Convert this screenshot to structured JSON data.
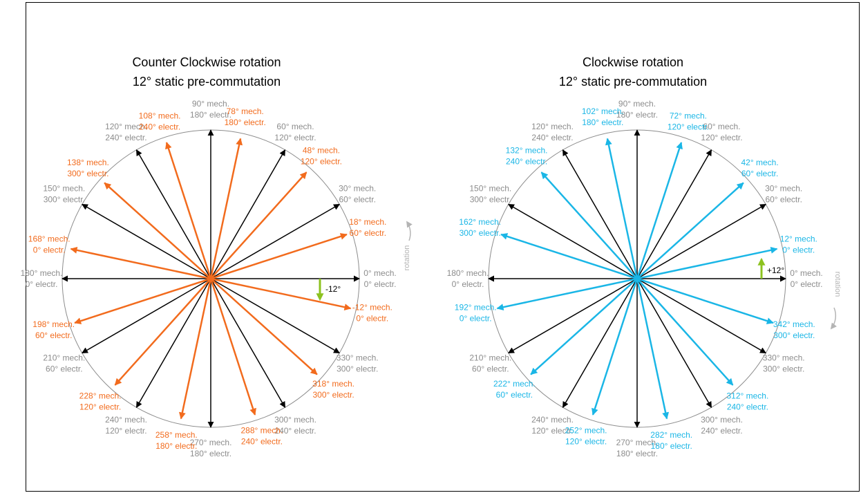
{
  "caption": "",
  "colors": {
    "circle": "#8c8c8c",
    "static_arrow": "#000000",
    "ccw_arrow": "#f26b1d",
    "cw_arrow": "#1ab6e6",
    "offset_marker": "#8cc21f",
    "static_label": "#8c8c8c",
    "rotation_label": "#b4b4b4"
  },
  "chart_data": [
    {
      "type": "polar-vector-diagram",
      "title_lines": [
        "Counter Clockwise rotation",
        "12° static pre-commutation"
      ],
      "rotation_label": "rotation",
      "rotation_direction": "counter-clockwise",
      "offset_label": "-12°",
      "static_vectors": [
        {
          "angle": 0,
          "lines": [
            "0° mech.",
            "0° electr."
          ]
        },
        {
          "angle": 30,
          "lines": [
            "30° mech.",
            "60° electr."
          ]
        },
        {
          "angle": 60,
          "lines": [
            "60° mech.",
            "120° electr."
          ]
        },
        {
          "angle": 90,
          "lines": [
            "90° mech.",
            "180° electr."
          ]
        },
        {
          "angle": 120,
          "lines": [
            "120° mech.",
            "240° electr."
          ]
        },
        {
          "angle": 150,
          "lines": [
            "150° mech.",
            "300° electr."
          ]
        },
        {
          "angle": 180,
          "lines": [
            "180° mech.",
            "0° electr."
          ]
        },
        {
          "angle": 210,
          "lines": [
            "210° mech.",
            "60° electr."
          ]
        },
        {
          "angle": 240,
          "lines": [
            "240° mech.",
            "120° electr."
          ]
        },
        {
          "angle": 270,
          "lines": [
            "270° mech.",
            "180° electr."
          ]
        },
        {
          "angle": 300,
          "lines": [
            "300° mech.",
            "240° electr."
          ]
        },
        {
          "angle": 330,
          "lines": [
            "330° mech.",
            "300° electr."
          ]
        }
      ],
      "shifted_vectors": [
        {
          "angle": -12,
          "lines": [
            "-12° mech.",
            "0° electr."
          ]
        },
        {
          "angle": 18,
          "lines": [
            "18° mech.",
            "60° electr."
          ]
        },
        {
          "angle": 48,
          "lines": [
            "48° mech.",
            "120° electr."
          ]
        },
        {
          "angle": 78,
          "lines": [
            "78° mech.",
            "180° electr."
          ]
        },
        {
          "angle": 108,
          "lines": [
            "108° mech.",
            "240° electr."
          ]
        },
        {
          "angle": 138,
          "lines": [
            "138° mech.",
            "300° electr."
          ]
        },
        {
          "angle": 168,
          "lines": [
            "168° mech.",
            "0° electr."
          ]
        },
        {
          "angle": 198,
          "lines": [
            "198° mech.",
            "60° electr."
          ]
        },
        {
          "angle": 228,
          "lines": [
            "228° mech.",
            "120° electr."
          ]
        },
        {
          "angle": 258,
          "lines": [
            "258° mech.",
            "180° electr."
          ]
        },
        {
          "angle": 288,
          "lines": [
            "288° mech.",
            "240° electr."
          ]
        },
        {
          "angle": 318,
          "lines": [
            "318° mech.",
            "300° electr."
          ]
        }
      ]
    },
    {
      "type": "polar-vector-diagram",
      "title_lines": [
        "Clockwise rotation",
        "12° static pre-commutation"
      ],
      "rotation_label": "rotation",
      "rotation_direction": "clockwise",
      "offset_label": "+12°",
      "static_vectors": [
        {
          "angle": 0,
          "lines": [
            "0° mech.",
            "0° electr."
          ]
        },
        {
          "angle": 30,
          "lines": [
            "30° mech.",
            "60° electr."
          ]
        },
        {
          "angle": 60,
          "lines": [
            "60° mech.",
            "120° electr."
          ]
        },
        {
          "angle": 90,
          "lines": [
            "90° mech.",
            "180° electr."
          ]
        },
        {
          "angle": 120,
          "lines": [
            "120° mech.",
            "240° electr."
          ]
        },
        {
          "angle": 150,
          "lines": [
            "150° mech.",
            "300° electr."
          ]
        },
        {
          "angle": 180,
          "lines": [
            "180° mech.",
            "0° electr."
          ]
        },
        {
          "angle": 210,
          "lines": [
            "210° mech.",
            "60° electr."
          ]
        },
        {
          "angle": 240,
          "lines": [
            "240° mech.",
            "120° electr."
          ]
        },
        {
          "angle": 270,
          "lines": [
            "270° mech.",
            "180° electr."
          ]
        },
        {
          "angle": 300,
          "lines": [
            "300° mech.",
            "240° electr."
          ]
        },
        {
          "angle": 330,
          "lines": [
            "330° mech.",
            "300° electr."
          ]
        }
      ],
      "shifted_vectors": [
        {
          "angle": 12,
          "lines": [
            "12° mech.",
            "0° electr."
          ]
        },
        {
          "angle": 42,
          "lines": [
            "42° mech.",
            "60° electr."
          ]
        },
        {
          "angle": 72,
          "lines": [
            "72° mech.",
            "120° electr."
          ]
        },
        {
          "angle": 102,
          "lines": [
            "102° mech.",
            "180° electr."
          ]
        },
        {
          "angle": 132,
          "lines": [
            "132° mech.",
            "240° electr."
          ]
        },
        {
          "angle": 162,
          "lines": [
            "162° mech.",
            "300° electr."
          ]
        },
        {
          "angle": 192,
          "lines": [
            "192° mech.",
            "0° electr."
          ]
        },
        {
          "angle": 222,
          "lines": [
            "222° mech.",
            "60° electr."
          ]
        },
        {
          "angle": 252,
          "lines": [
            "252° mech.",
            "120° electr."
          ]
        },
        {
          "angle": 282,
          "lines": [
            "282° mech.",
            "180° electr."
          ]
        },
        {
          "angle": 312,
          "lines": [
            "312° mech.",
            "240° electr."
          ]
        },
        {
          "angle": 342,
          "lines": [
            "342° mech.",
            "300° electr."
          ]
        }
      ]
    }
  ]
}
